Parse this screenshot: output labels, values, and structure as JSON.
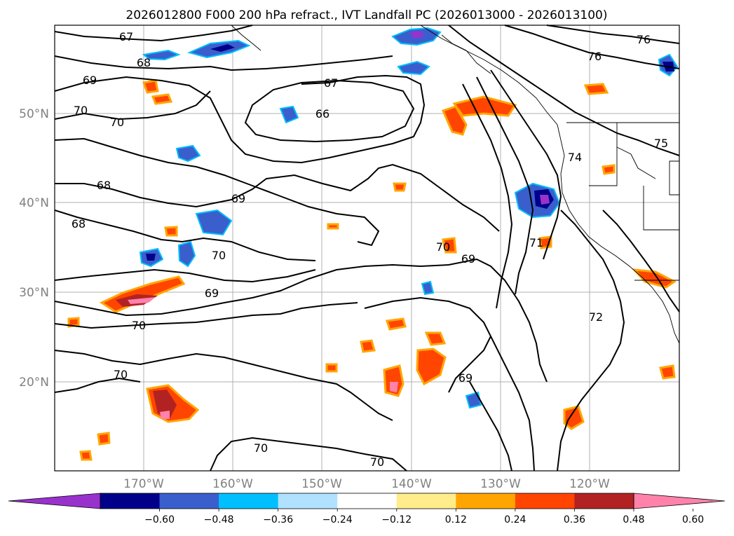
{
  "title": "2026012800 F000 200 hPa refract., IVT Landfall PC (2026013000 - 2026013100)",
  "map": {
    "lat_labels": [
      "50°N",
      "40°N",
      "30°N",
      "20°N"
    ],
    "lon_labels": [
      "170°W",
      "160°W",
      "150°W",
      "140°W",
      "130°W",
      "120°W"
    ],
    "contour_labels": [
      "67",
      "68",
      "69",
      "70",
      "70",
      "66",
      "67",
      "68",
      "69",
      "68",
      "70",
      "69",
      "70",
      "70",
      "70",
      "69",
      "71",
      "72",
      "76",
      "76",
      "75",
      "74",
      "70",
      "69",
      "70"
    ]
  },
  "colorbar": {
    "ticks": [
      "−0.60",
      "−0.48",
      "−0.36",
      "−0.24",
      "−0.12",
      "0.12",
      "0.24",
      "0.36",
      "0.48",
      "0.60"
    ],
    "colors": [
      "#9932cc",
      "#00008b",
      "#3a5fcd",
      "#00bfff",
      "#b0e2ff",
      "#ffffff",
      "#ffec8b",
      "#ffa500",
      "#ff4500",
      "#b22222",
      "#ff82ab"
    ]
  },
  "colors": {
    "contour": "#000000",
    "grid": "#b0b0b0",
    "ticklabel": "#808080"
  }
}
